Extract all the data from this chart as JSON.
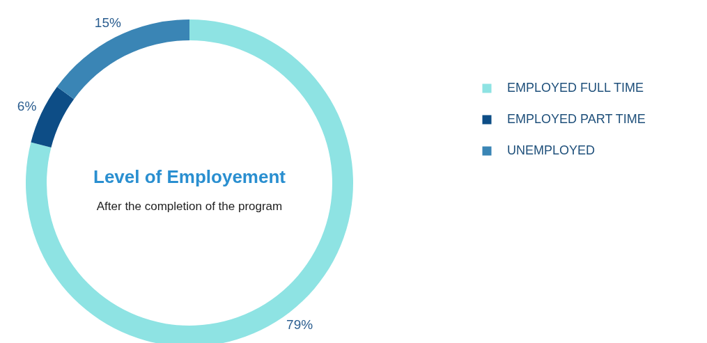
{
  "chart_data": {
    "type": "donut",
    "title": "Level of Employement",
    "subtitle": "After the completion of the program",
    "categories": [
      "EMPLOYED FULL TIME",
      "EMPLOYED PART TIME",
      "UNEMPLOYED"
    ],
    "values": [
      79,
      6,
      15
    ],
    "colors": [
      "#8ee3e3",
      "#0d4d86",
      "#3a85b5"
    ],
    "value_labels": [
      "79%",
      "6%",
      "15%"
    ],
    "legend": "right"
  }
}
